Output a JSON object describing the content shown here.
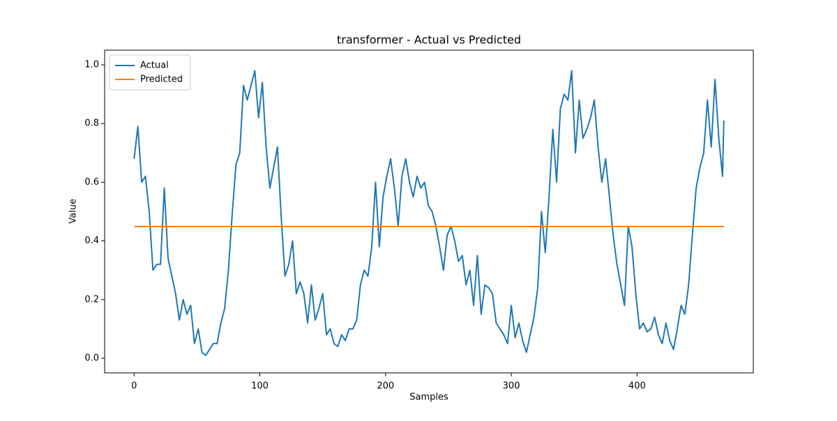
{
  "chart_data": {
    "type": "line",
    "title": "transformer - Actual vs Predicted",
    "x_label": "Samples",
    "y_label": "Value",
    "xlim": [
      -23.45,
      492.45
    ],
    "xticks": [
      0,
      100,
      200,
      300,
      400
    ],
    "ylim": [
      -0.05,
      1.05
    ],
    "yticks": [
      {
        "value": 0,
        "label": "0.0"
      },
      0.2,
      0.4,
      0.6,
      0.8,
      {
        "value": 1,
        "label": "1.0"
      }
    ],
    "legend": "upper left",
    "series": [
      {
        "name": "Actual",
        "color": "#1f77b4",
        "x": [
          0,
          3,
          6,
          9,
          12,
          15,
          18,
          21,
          24,
          27,
          30,
          33,
          36,
          39,
          42,
          45,
          48,
          51,
          54,
          57,
          60,
          63,
          66,
          69,
          72,
          75,
          78,
          81,
          84,
          87,
          90,
          93,
          96,
          99,
          102,
          105,
          108,
          111,
          114,
          117,
          120,
          123,
          126,
          129,
          132,
          135,
          138,
          141,
          144,
          147,
          150,
          153,
          156,
          159,
          162,
          165,
          168,
          171,
          174,
          177,
          180,
          183,
          186,
          189,
          192,
          195,
          198,
          201,
          204,
          207,
          210,
          213,
          216,
          219,
          222,
          225,
          228,
          231,
          234,
          237,
          240,
          243,
          246,
          249,
          252,
          255,
          258,
          261,
          264,
          267,
          270,
          273,
          276,
          279,
          282,
          285,
          288,
          291,
          294,
          297,
          300,
          303,
          306,
          309,
          312,
          315,
          318,
          321,
          324,
          327,
          330,
          333,
          336,
          339,
          342,
          345,
          348,
          351,
          354,
          357,
          360,
          363,
          366,
          369,
          372,
          375,
          378,
          381,
          384,
          387,
          390,
          393,
          396,
          399,
          402,
          405,
          408,
          411,
          414,
          417,
          420,
          423,
          426,
          429,
          432,
          435,
          438,
          441,
          444,
          447,
          450,
          453,
          456,
          459,
          462,
          465,
          468,
          469
        ],
        "values": [
          0.68,
          0.79,
          0.6,
          0.62,
          0.5,
          0.3,
          0.32,
          0.32,
          0.58,
          0.34,
          0.28,
          0.22,
          0.13,
          0.2,
          0.15,
          0.18,
          0.05,
          0.1,
          0.02,
          0.01,
          0.03,
          0.05,
          0.05,
          0.12,
          0.17,
          0.3,
          0.49,
          0.66,
          0.7,
          0.93,
          0.88,
          0.93,
          0.98,
          0.82,
          0.94,
          0.72,
          0.58,
          0.65,
          0.72,
          0.48,
          0.28,
          0.32,
          0.4,
          0.22,
          0.26,
          0.22,
          0.12,
          0.25,
          0.13,
          0.17,
          0.22,
          0.08,
          0.1,
          0.05,
          0.04,
          0.08,
          0.06,
          0.1,
          0.1,
          0.13,
          0.25,
          0.3,
          0.28,
          0.38,
          0.6,
          0.38,
          0.55,
          0.62,
          0.68,
          0.58,
          0.45,
          0.62,
          0.68,
          0.6,
          0.55,
          0.62,
          0.58,
          0.6,
          0.52,
          0.5,
          0.45,
          0.38,
          0.3,
          0.42,
          0.45,
          0.4,
          0.33,
          0.35,
          0.25,
          0.3,
          0.18,
          0.35,
          0.15,
          0.25,
          0.24,
          0.22,
          0.12,
          0.1,
          0.08,
          0.05,
          0.18,
          0.07,
          0.12,
          0.06,
          0.02,
          0.08,
          0.14,
          0.24,
          0.5,
          0.36,
          0.55,
          0.78,
          0.6,
          0.85,
          0.9,
          0.88,
          0.98,
          0.7,
          0.88,
          0.75,
          0.78,
          0.82,
          0.88,
          0.72,
          0.6,
          0.68,
          0.55,
          0.42,
          0.32,
          0.25,
          0.18,
          0.45,
          0.38,
          0.22,
          0.1,
          0.12,
          0.09,
          0.1,
          0.14,
          0.08,
          0.05,
          0.12,
          0.06,
          0.03,
          0.1,
          0.18,
          0.15,
          0.25,
          0.42,
          0.58,
          0.65,
          0.7,
          0.88,
          0.72,
          0.95,
          0.75,
          0.62,
          0.81
        ]
      },
      {
        "name": "Predicted",
        "color": "#ff7f0e",
        "x": [
          0,
          469
        ],
        "values": [
          0.449,
          0.449
        ]
      }
    ]
  }
}
